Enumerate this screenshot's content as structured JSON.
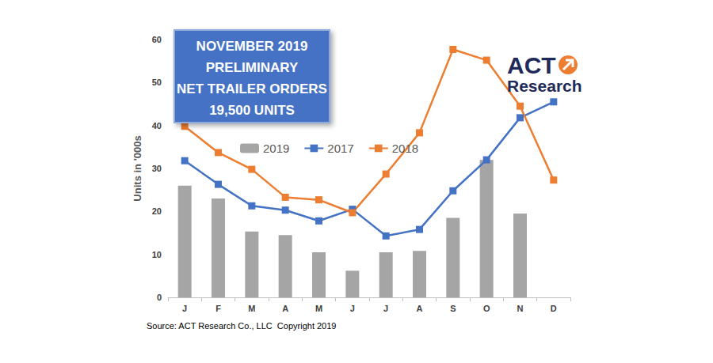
{
  "chart_data": {
    "type": "bar",
    "title": "NOVEMBER 2019\nPRELIMINARY\nNET TRAILER ORDERS\n19,500 UNITS",
    "annotations": [
      "ACT",
      "Research"
    ],
    "source": "Source: ACT Research Co., LLC  Copyright 2019",
    "y_label": "Units in '000s",
    "categories": [
      "J",
      "F",
      "M",
      "A",
      "M",
      "J",
      "J",
      "A",
      "S",
      "O",
      "N",
      "D"
    ],
    "series": [
      {
        "name": "2019",
        "type": "bar",
        "color": "#a5a5a5",
        "values": [
          26,
          23,
          15.3,
          14.5,
          10.5,
          6.2,
          10.5,
          10.8,
          18.5,
          32,
          19.5,
          null
        ]
      },
      {
        "name": "2017",
        "type": "line",
        "color": "#4472c4",
        "marker": "square",
        "values": [
          31.8,
          26.3,
          21.3,
          20.3,
          17.8,
          20.5,
          14.3,
          15.8,
          24.8,
          32,
          41.8,
          45.5
        ]
      },
      {
        "name": "2018",
        "type": "line",
        "color": "#ed7d31",
        "marker": "square",
        "values": [
          39.8,
          33.7,
          29.8,
          23.3,
          22.7,
          19.7,
          28.7,
          38.3,
          57.7,
          55.2,
          44.5,
          27.3
        ]
      }
    ],
    "ylim": [
      0,
      60
    ],
    "yticks": [
      0,
      10,
      20,
      30,
      40,
      50,
      60
    ],
    "grid": false,
    "legend": "top"
  }
}
